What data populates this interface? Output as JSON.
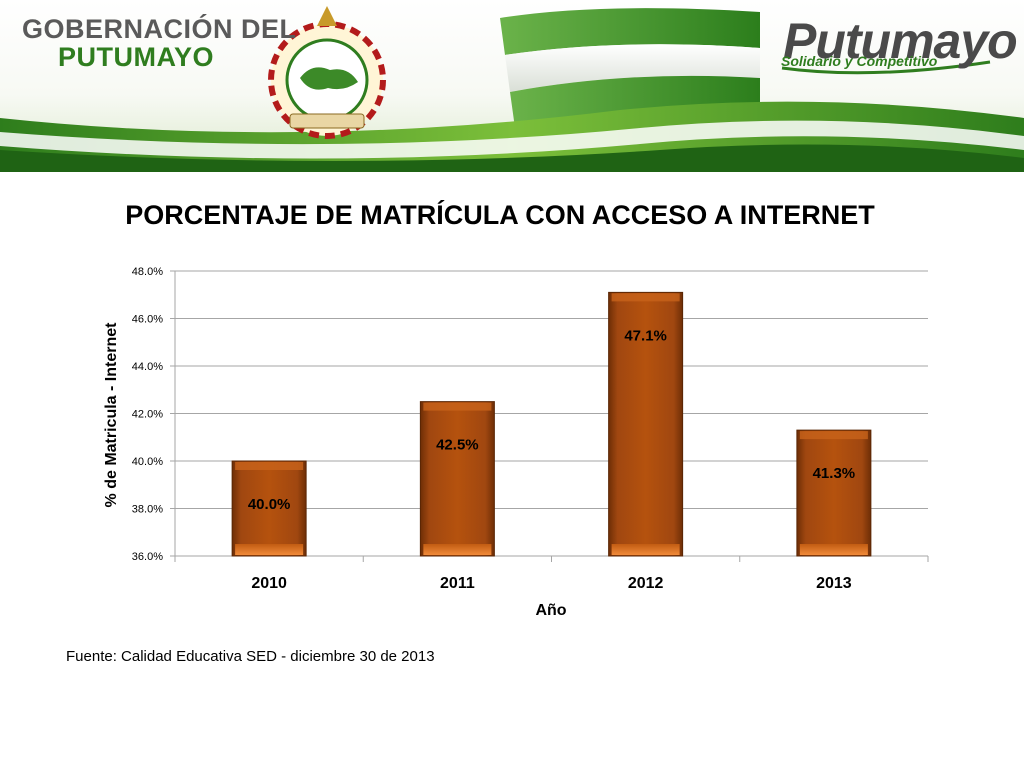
{
  "header": {
    "org_line1": "GOBERNACIÓN DEL",
    "org_line2": "PUTUMAYO",
    "brand_title": "Putumayo",
    "brand_tagline": "Solidario y Competitivo",
    "emblem_text": "PUTUMAYO"
  },
  "chart_data": {
    "type": "bar",
    "title": "PORCENTAJE DE MATRÍCULA CON ACCESO A INTERNET",
    "xlabel": "Año",
    "ylabel": "% de Matricula - Internet",
    "categories": [
      "2010",
      "2011",
      "2012",
      "2013"
    ],
    "values": [
      40.0,
      42.5,
      47.1,
      41.3
    ],
    "value_labels": [
      "40.0%",
      "42.5%",
      "47.1%",
      "41.3%"
    ],
    "ylim": [
      36.0,
      48.0
    ],
    "yticks": [
      36.0,
      38.0,
      40.0,
      42.0,
      44.0,
      46.0,
      48.0
    ],
    "ytick_labels": [
      "36.0%",
      "38.0%",
      "40.0%",
      "42.0%",
      "44.0%",
      "46.0%",
      "48.0%"
    ],
    "grid": true,
    "legend": "none",
    "bar_color": "#b5520e"
  },
  "footer": {
    "source": "Fuente: Calidad Educativa SED - diciembre 30 de 2013"
  }
}
